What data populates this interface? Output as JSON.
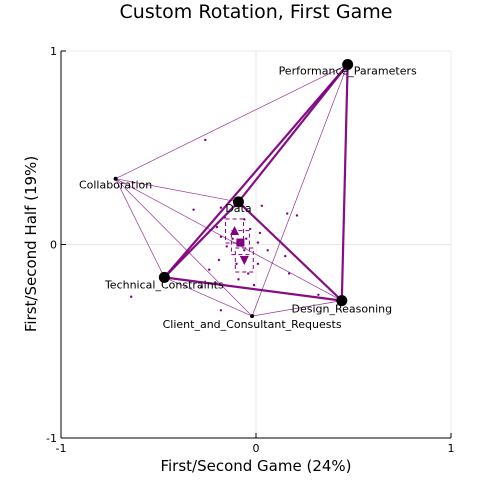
{
  "chart_data": {
    "type": "scatter",
    "title": "Custom Rotation, First Game",
    "xlabel": "First/Second Game (24%)",
    "ylabel": "First/Second Half (19%)",
    "xlim": [
      -1,
      1
    ],
    "ylim": [
      -1,
      1
    ],
    "xticks": [
      "-1",
      "0",
      "1"
    ],
    "yticks": [
      "-1",
      "0",
      "1"
    ],
    "grid": true,
    "legend": "none",
    "colors": {
      "edge": "#800080",
      "node": "#000000",
      "grid": "#e8e8e8",
      "centroid": "#800080"
    },
    "nodes": [
      {
        "label": "Performance_Parameters",
        "x": 0.47,
        "y": 0.93,
        "size": "large"
      },
      {
        "label": "Collaboration",
        "x": -0.72,
        "y": 0.34,
        "size": "small"
      },
      {
        "label": "Data",
        "x": -0.09,
        "y": 0.22,
        "size": "large"
      },
      {
        "label": "Technical_Constraints",
        "x": -0.47,
        "y": -0.17,
        "size": "large"
      },
      {
        "label": "Design_Reasoning",
        "x": 0.44,
        "y": -0.29,
        "size": "large"
      },
      {
        "label": "Client_and_Consultant_Requests",
        "x": -0.02,
        "y": -0.37,
        "size": "small"
      }
    ],
    "edges": [
      {
        "a": "Data",
        "b": "Performance_Parameters",
        "weight": "thick"
      },
      {
        "a": "Technical_Constraints",
        "b": "Performance_Parameters",
        "weight": "thick"
      },
      {
        "a": "Design_Reasoning",
        "b": "Performance_Parameters",
        "weight": "thick"
      },
      {
        "a": "Technical_Constraints",
        "b": "Design_Reasoning",
        "weight": "thick"
      },
      {
        "a": "Data",
        "b": "Technical_Constraints",
        "weight": "thick"
      },
      {
        "a": "Data",
        "b": "Design_Reasoning",
        "weight": "thick"
      },
      {
        "a": "Collaboration",
        "b": "Performance_Parameters",
        "weight": "thin"
      },
      {
        "a": "Collaboration",
        "b": "Data",
        "weight": "thin"
      },
      {
        "a": "Collaboration",
        "b": "Technical_Constraints",
        "weight": "thin"
      },
      {
        "a": "Collaboration",
        "b": "Design_Reasoning",
        "weight": "thin"
      },
      {
        "a": "Collaboration",
        "b": "Client_and_Consultant_Requests",
        "weight": "thin"
      },
      {
        "a": "Client_and_Consultant_Requests",
        "b": "Performance_Parameters",
        "weight": "thin"
      },
      {
        "a": "Client_and_Consultant_Requests",
        "b": "Technical_Constraints",
        "weight": "thin"
      },
      {
        "a": "Client_and_Consultant_Requests",
        "b": "Design_Reasoning",
        "weight": "thin"
      }
    ],
    "centroids": [
      {
        "x": -0.08,
        "y": 0.01,
        "shape": "square"
      },
      {
        "x": -0.11,
        "y": 0.07,
        "shape": "triangle-up"
      },
      {
        "x": -0.06,
        "y": -0.08,
        "shape": "triangle-down"
      }
    ],
    "points": [
      [
        -0.26,
        0.54
      ],
      [
        -0.32,
        0.18
      ],
      [
        -0.18,
        0.19
      ],
      [
        -0.16,
        0.14
      ],
      [
        0.03,
        0.2
      ],
      [
        0.16,
        0.16
      ],
      [
        0.21,
        0.15
      ],
      [
        -0.06,
        0.13
      ],
      [
        -0.2,
        0.09
      ],
      [
        -0.03,
        0.08
      ],
      [
        0.02,
        0.06
      ],
      [
        -0.18,
        0.04
      ],
      [
        -0.12,
        0.03
      ],
      [
        -0.05,
        0.03
      ],
      [
        0.01,
        0.01
      ],
      [
        -0.15,
        -0.01
      ],
      [
        -0.06,
        -0.03
      ],
      [
        0.06,
        -0.03
      ],
      [
        0.15,
        -0.06
      ],
      [
        -0.19,
        -0.08
      ],
      [
        -0.1,
        -0.1
      ],
      [
        0.01,
        -0.1
      ],
      [
        -0.24,
        -0.13
      ],
      [
        -0.04,
        -0.15
      ],
      [
        0.17,
        -0.15
      ],
      [
        -0.09,
        -0.18
      ],
      [
        -0.01,
        -0.21
      ],
      [
        -0.28,
        -0.22
      ],
      [
        -0.64,
        -0.27
      ],
      [
        -0.18,
        -0.34
      ],
      [
        0.32,
        -0.26
      ]
    ]
  }
}
